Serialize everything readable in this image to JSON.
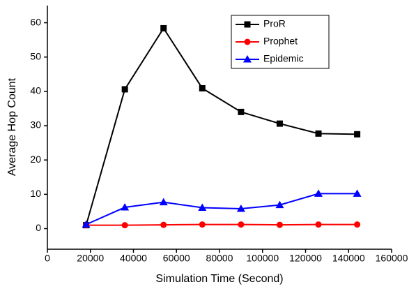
{
  "chart_data": {
    "type": "line",
    "x_label": "Simulation Time (Second)",
    "y_label": "Average Hop Count",
    "x": [
      18000,
      36000,
      54000,
      72000,
      90000,
      108000,
      126000,
      144000
    ],
    "series": [
      {
        "name": "ProR",
        "color": "#000000",
        "marker": "square",
        "values": [
          1,
          40.6,
          58.4,
          40.9,
          34,
          30.6,
          27.7,
          27.5
        ]
      },
      {
        "name": "Prophet",
        "color": "#ff0000",
        "marker": "circle",
        "values": [
          1,
          1,
          1.1,
          1.2,
          1.2,
          1.1,
          1.2,
          1.2
        ]
      },
      {
        "name": "Epidemic",
        "color": "#0000ff",
        "marker": "triangle",
        "values": [
          1.2,
          6.2,
          7.7,
          6.1,
          5.8,
          6.9,
          10.2,
          10.2
        ]
      }
    ],
    "xlim": [
      0,
      160000
    ],
    "xticks": [
      0,
      20000,
      40000,
      60000,
      80000,
      100000,
      120000,
      140000,
      160000
    ],
    "ylim": [
      -6,
      65
    ],
    "yticks": [
      0,
      10,
      20,
      30,
      40,
      50,
      60
    ],
    "grid": false,
    "legend": "top-right"
  }
}
